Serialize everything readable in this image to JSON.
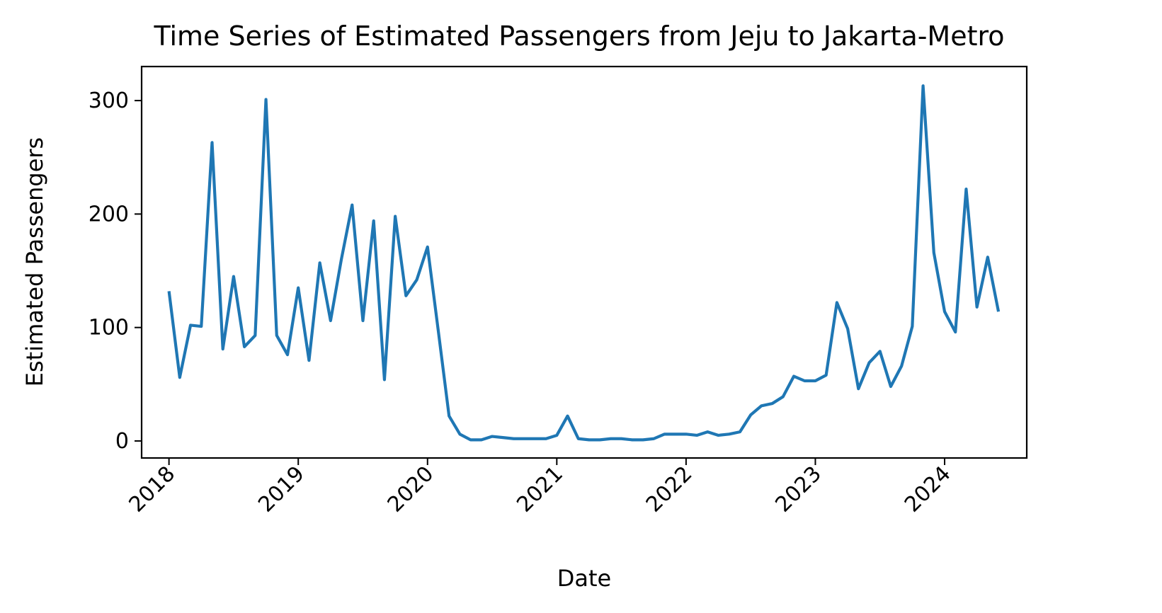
{
  "chart_data": {
    "type": "line",
    "title": "Time Series of Estimated Passengers from Jeju to Jakarta-Metro",
    "xlabel": "Date",
    "ylabel": "Estimated Passengers",
    "x_ticks": [
      "2018",
      "2019",
      "2020",
      "2021",
      "2022",
      "2023",
      "2024"
    ],
    "y_ticks": [
      0,
      100,
      200,
      300
    ],
    "xlim": [
      "2017-10-15",
      "2024-08-20"
    ],
    "ylim": [
      -15,
      330
    ],
    "grid": false,
    "line_color": "#1f77b4",
    "x": [
      "2018-01",
      "2018-02",
      "2018-03",
      "2018-04",
      "2018-05",
      "2018-06",
      "2018-07",
      "2018-08",
      "2018-09",
      "2018-10",
      "2018-11",
      "2018-12",
      "2019-01",
      "2019-02",
      "2019-03",
      "2019-04",
      "2019-05",
      "2019-06",
      "2019-07",
      "2019-08",
      "2019-09",
      "2019-10",
      "2019-11",
      "2019-12",
      "2020-01",
      "2020-02",
      "2020-03",
      "2020-04",
      "2020-05",
      "2020-06",
      "2020-07",
      "2020-08",
      "2020-09",
      "2020-10",
      "2020-11",
      "2020-12",
      "2021-01",
      "2021-02",
      "2021-03",
      "2021-04",
      "2021-05",
      "2021-06",
      "2021-07",
      "2021-08",
      "2021-09",
      "2021-10",
      "2021-11",
      "2021-12",
      "2022-01",
      "2022-02",
      "2022-03",
      "2022-04",
      "2022-05",
      "2022-06",
      "2022-07",
      "2022-08",
      "2022-09",
      "2022-10",
      "2022-11",
      "2022-12",
      "2023-01",
      "2023-02",
      "2023-03",
      "2023-04",
      "2023-05",
      "2023-06",
      "2023-07",
      "2023-08",
      "2023-09",
      "2023-10",
      "2023-11",
      "2023-12",
      "2024-01",
      "2024-02",
      "2024-03",
      "2024-04",
      "2024-05",
      "2024-06"
    ],
    "values": [
      132,
      56,
      102,
      101,
      263,
      81,
      145,
      83,
      93,
      301,
      93,
      76,
      135,
      71,
      157,
      106,
      160,
      208,
      106,
      194,
      54,
      198,
      128,
      142,
      171,
      97,
      22,
      6,
      1,
      1,
      4,
      3,
      2,
      2,
      2,
      2,
      5,
      22,
      2,
      1,
      1,
      2,
      2,
      1,
      1,
      2,
      6,
      6,
      6,
      5,
      8,
      5,
      6,
      8,
      23,
      31,
      33,
      39,
      57,
      53,
      53,
      58,
      122,
      99,
      46,
      69,
      79,
      48,
      66,
      101,
      313,
      166,
      114,
      96,
      222,
      118,
      162,
      114
    ]
  }
}
